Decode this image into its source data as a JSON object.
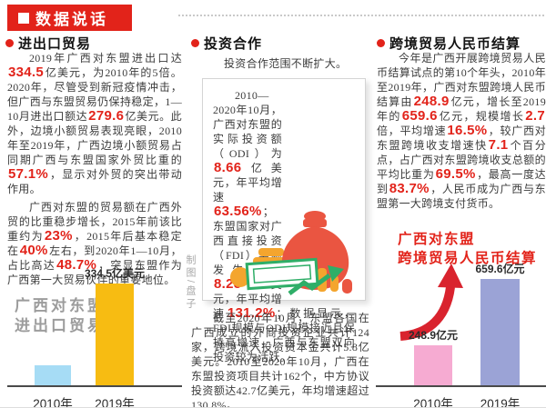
{
  "colors": {
    "accent_red": "#e2231a",
    "masthead_bg": "#e2231a",
    "bar_blue": "#a6dcf5",
    "bar_yellow": "#f7bc12",
    "bar_pink": "#f6abd2",
    "bar_purple": "#9ba3d6",
    "label_gray": "#9c9c9c",
    "illu_bag_red": "#ea5541",
    "illu_coin_orange": "#f4a52e",
    "illu_green": "#2fae68"
  },
  "masthead": {
    "title": "数据说话"
  },
  "sections": {
    "trade": {
      "title": "进出口贸易",
      "paragraphs": [
        [
          {
            "text": "2019年广西对东盟进出口达"
          },
          {
            "text": "334.5",
            "em": true
          },
          {
            "text": "亿美元，为2010年的5倍。2020年，尽管受到新冠疫情冲击，但广西与东盟贸易仍保持稳定，1—10月进出口额达"
          },
          {
            "text": "279.6",
            "em": true
          },
          {
            "text": "亿美元。此外，边境小额贸易表现亮眼，2010年至2019年，广西边境小额贸易占同期广西与东盟国家外贸比重的"
          },
          {
            "text": "57.1%",
            "em": true
          },
          {
            "text": "，显示对外贸的突出带动作用。"
          }
        ],
        [
          {
            "text": "广西对东盟的贸易额在广西外贸的比重稳步增长，2015年前该比重约为"
          },
          {
            "text": "23%",
            "em": true
          },
          {
            "text": "，2015年后基本稳定在"
          },
          {
            "text": "40%",
            "em": true
          },
          {
            "text": "左右，到2020年1—10月，占比高达"
          },
          {
            "text": "48.7%",
            "em": true
          },
          {
            "text": "，突显东盟作为广西第一大贸易伙伴的重要地位。"
          }
        ]
      ]
    },
    "investment": {
      "title": "投资合作",
      "intro": "投资合作范围不断扩大。",
      "box_paragraph": [
        {
          "text": "2010—2020年10月，广西对东盟的实际投资额（ODI）为"
        },
        {
          "text": "8.66",
          "em": true
        },
        {
          "text": "亿美元，年平均增速"
        },
        {
          "text": "63.56%",
          "em": true
        },
        {
          "text": "；东盟国家对广西直接投资（FDI）实际发生额为"
        },
        {
          "text": "8.28",
          "em": true
        },
        {
          "text": "亿美元，年平均增速"
        },
        {
          "text": "131.2%",
          "em": true
        },
        {
          "text": "；数据显示，FDI规模与ODI规模接近且保持高增速，广西与东盟双向投资较为活跃。"
        }
      ],
      "bottom_paragraph": "截至2020年10月，东盟各国在广西成立的外商投资企业共计124家，跨境流入投资资本金共计5.8亿美元。2010至2020年10月，广西在东盟投资项目共计162个，中方协议投资额达42.7亿美元，年均增速超过130.8%。",
      "credit": "制图/盘子"
    },
    "rmb": {
      "title": "跨境贸易人民币结算",
      "paragraph": [
        {
          "text": "今年是广西开展跨境贸易人民币结算试点的第10个年头，2010年至2019年，广西对东盟跨境人民币结算由"
        },
        {
          "text": "248.9",
          "em": true
        },
        {
          "text": "亿元，增长至2019年的"
        },
        {
          "text": "659.6",
          "em": true
        },
        {
          "text": "亿元，规模增长"
        },
        {
          "text": "2.7",
          "em": true
        },
        {
          "text": "倍，平均增速"
        },
        {
          "text": "16.5%",
          "em": true
        },
        {
          "text": "，较广西对东盟跨境收支增速快"
        },
        {
          "text": "7.1",
          "em": true
        },
        {
          "text": "个百分点，占广西对东盟跨境收支总额的平均比重为"
        },
        {
          "text": "69.5%",
          "em": true
        },
        {
          "text": "，最高一度达到"
        },
        {
          "text": "83.7%",
          "em": true
        },
        {
          "text": "，人民币成为广西与东盟第一大跨境支付货币。"
        }
      ]
    }
  },
  "chart_data": [
    {
      "type": "bar",
      "title": "广西对东盟进出口贸易",
      "side_label_lines": [
        "广西对东盟",
        "进出口贸易"
      ],
      "categories": [
        "2010年",
        "2019年"
      ],
      "values": [
        66.9,
        334.5
      ],
      "value_labels": [
        "",
        "334.5亿美元"
      ],
      "unit": "亿美元",
      "colors": [
        "#a6dcf5",
        "#f7bc12"
      ],
      "ylim": [
        0,
        334.5
      ],
      "grid": false,
      "legend": "none"
    },
    {
      "type": "bar",
      "title": "广西对东盟跨境贸易人民币结算",
      "title_lines": [
        "广西对东盟",
        "跨境贸易人民币结算"
      ],
      "categories": [
        "2010年",
        "2019年"
      ],
      "values": [
        248.9,
        659.6
      ],
      "value_labels": [
        "248.9亿元",
        "659.6亿元"
      ],
      "unit": "亿元",
      "colors": [
        "#f6abd2",
        "#9ba3d6"
      ],
      "ylim": [
        0,
        659.6
      ],
      "grid": false,
      "legend": "none"
    }
  ]
}
